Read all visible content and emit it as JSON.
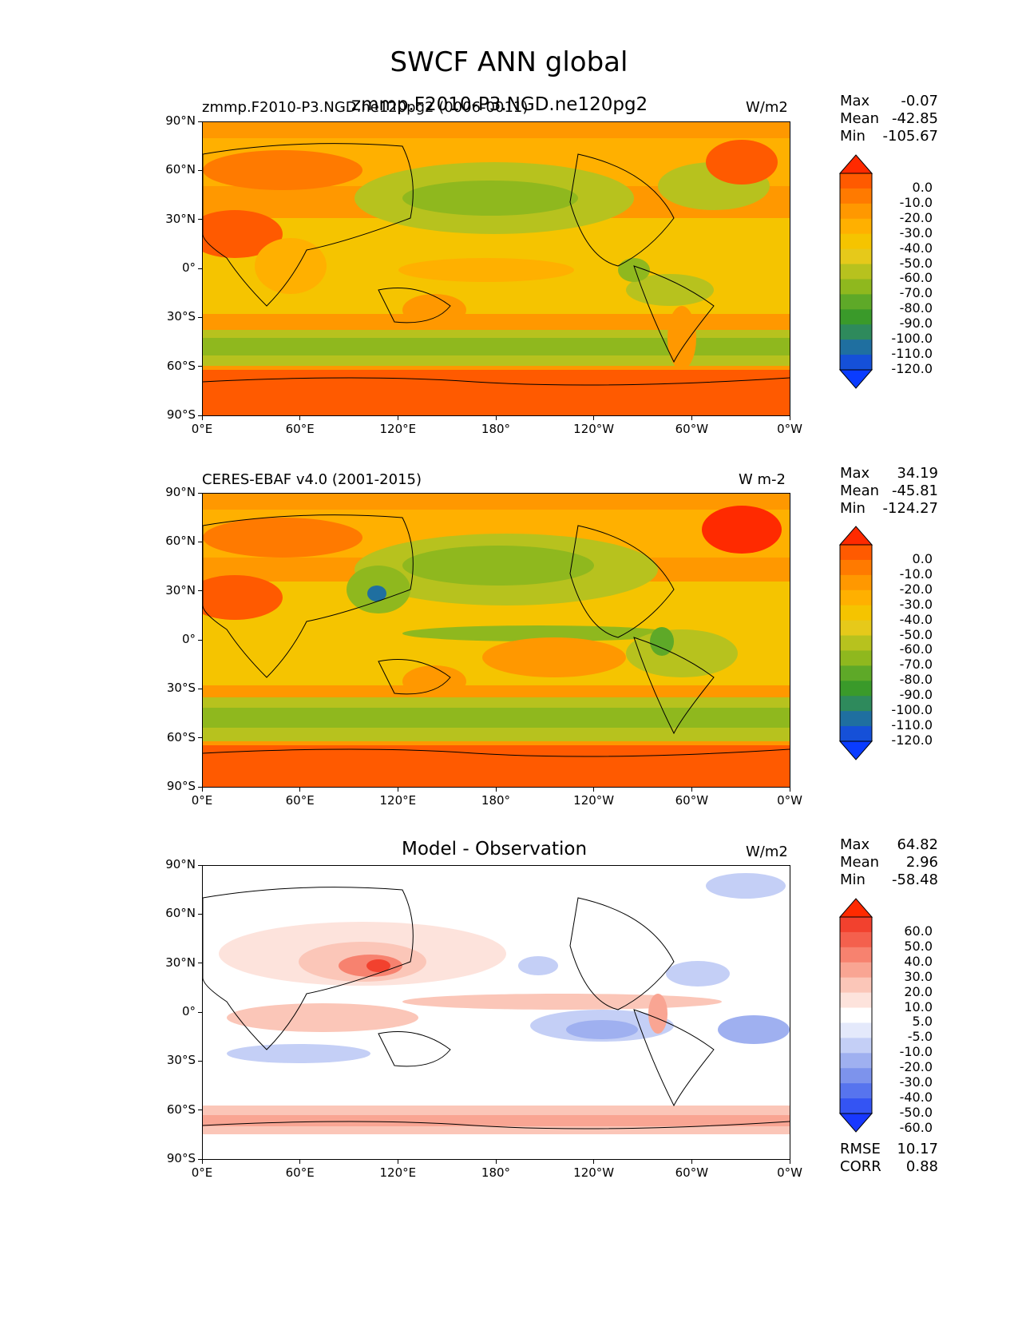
{
  "figure": {
    "title": "SWCF ANN global"
  },
  "chart_data": [
    {
      "type": "heatmap",
      "panel": "model",
      "title_left": "zmmp.F2010-P3.NGD.ne120pg2 (0006-0011)",
      "title_center": "zmmp.F2010-P3.NGD.ne120pg2",
      "units": "W/m2",
      "stats": {
        "max": "-0.07",
        "mean": "-42.85",
        "min": "-105.67"
      },
      "colorbar_levels": [
        "0.0",
        "-10.0",
        "-20.0",
        "-30.0",
        "-40.0",
        "-50.0",
        "-60.0",
        "-70.0",
        "-80.0",
        "-90.0",
        "-100.0",
        "-110.0",
        "-120.0"
      ],
      "colorbar_colors": [
        "#ff2a00",
        "#ff5a00",
        "#ff7a00",
        "#ff9800",
        "#ffb000",
        "#f5c400",
        "#e6c91a",
        "#b7c21e",
        "#8fb81e",
        "#5ea928",
        "#3a9a2a",
        "#2e8a5c",
        "#1f6fa0",
        "#1550d8",
        "#0a3cff"
      ],
      "xticks": [
        "0°E",
        "60°E",
        "120°E",
        "180°",
        "120°W",
        "60°W",
        "0°W"
      ],
      "yticks": [
        "90°N",
        "60°N",
        "30°N",
        "0°",
        "30°S",
        "60°S",
        "90°S"
      ]
    },
    {
      "type": "heatmap",
      "panel": "observation",
      "title_left": "CERES-EBAF v4.0 (2001-2015)",
      "title_center": "",
      "units": "W m-2",
      "stats": {
        "max": "34.19",
        "mean": "-45.81",
        "min": "-124.27"
      },
      "colorbar_levels": [
        "0.0",
        "-10.0",
        "-20.0",
        "-30.0",
        "-40.0",
        "-50.0",
        "-60.0",
        "-70.0",
        "-80.0",
        "-90.0",
        "-100.0",
        "-110.0",
        "-120.0"
      ],
      "colorbar_colors": [
        "#ff2a00",
        "#ff5a00",
        "#ff7a00",
        "#ff9800",
        "#ffb000",
        "#f5c400",
        "#e6c91a",
        "#b7c21e",
        "#8fb81e",
        "#5ea928",
        "#3a9a2a",
        "#2e8a5c",
        "#1f6fa0",
        "#1550d8",
        "#0a3cff"
      ],
      "xticks": [
        "0°E",
        "60°E",
        "120°E",
        "180°",
        "120°W",
        "60°W",
        "0°W"
      ],
      "yticks": [
        "90°N",
        "60°N",
        "30°N",
        "0°",
        "30°S",
        "60°S",
        "90°S"
      ]
    },
    {
      "type": "heatmap",
      "panel": "difference",
      "title_left": "",
      "title_center": "Model - Observation",
      "units": "W/m2",
      "stats": {
        "max": "64.82",
        "mean": "2.96",
        "min": "-58.48"
      },
      "rmse": {
        "label": "RMSE",
        "value": "10.17"
      },
      "corr": {
        "label": "CORR",
        "value": "0.88"
      },
      "colorbar_levels": [
        "60.0",
        "50.0",
        "40.0",
        "30.0",
        "20.0",
        "10.0",
        "5.0",
        "-5.0",
        "-10.0",
        "-20.0",
        "-30.0",
        "-40.0",
        "-50.0",
        "-60.0"
      ],
      "colorbar_colors": [
        "#ff2a00",
        "#f2412e",
        "#f4604d",
        "#f7826f",
        "#f9a593",
        "#fbc6b8",
        "#fde3dc",
        "#ffffff",
        "#e4e9fb",
        "#c4cff6",
        "#9fb0f0",
        "#7d93ec",
        "#5774ee",
        "#3454f3",
        "#1838ff"
      ],
      "xticks": [
        "0°E",
        "60°E",
        "120°E",
        "180°",
        "120°W",
        "60°W",
        "0°W"
      ],
      "yticks": [
        "90°N",
        "60°N",
        "30°N",
        "0°",
        "30°S",
        "60°S",
        "90°S"
      ]
    }
  ],
  "labels": {
    "max": "Max",
    "mean": "Mean",
    "min": "Min"
  }
}
